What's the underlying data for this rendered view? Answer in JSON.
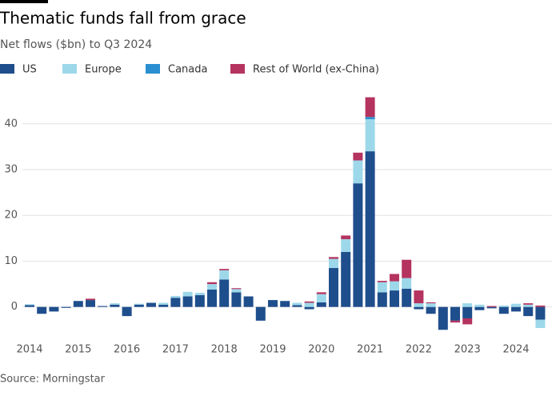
{
  "chart_data": {
    "type": "stacked-bar",
    "title": "Thematic funds fall from grace",
    "subtitle": "Net flows ($bn) to Q3 2024",
    "source": "Source: Morningstar",
    "categories": [
      "2014",
      null,
      null,
      null,
      "2015",
      null,
      null,
      null,
      "2016",
      null,
      null,
      null,
      "2017",
      null,
      null,
      null,
      "2018",
      null,
      null,
      null,
      "2019",
      null,
      null,
      null,
      "2020",
      null,
      null,
      null,
      "2021",
      null,
      null,
      null,
      "2022",
      null,
      null,
      null,
      "2023",
      null,
      null,
      null,
      "2024",
      null,
      null
    ],
    "series": [
      {
        "name": "US",
        "color": "#1f4e8c",
        "values": [
          0.4,
          -1.5,
          -1,
          -0.2,
          1.3,
          1.5,
          0.2,
          0.5,
          -2,
          0.5,
          0.9,
          0.5,
          2,
          2.3,
          2.6,
          3.8,
          6,
          3.2,
          2.3,
          -3,
          1.5,
          1.3,
          0.4,
          -0.5,
          1,
          8.5,
          12,
          27,
          34,
          3.2,
          3.6,
          4,
          -0.5,
          -1.5,
          -5,
          -3,
          -2.5,
          -0.7,
          -0.3,
          -1.5,
          -1,
          -2,
          -2.8
        ]
      },
      {
        "name": "Europe",
        "color": "#9dd8ea",
        "values": [
          0.2,
          0,
          0,
          0,
          0,
          0,
          0,
          0.3,
          0,
          0.2,
          0,
          0.4,
          0.4,
          1,
          0.5,
          1.2,
          2,
          0.7,
          0,
          0,
          0,
          0,
          0.5,
          0.9,
          1.8,
          2,
          2.8,
          5,
          7,
          2.2,
          2,
          2.3,
          0.8,
          0.8,
          0,
          0,
          0.8,
          0.5,
          0,
          0.3,
          0.7,
          0.5,
          -1.8
        ]
      },
      {
        "name": "Canada",
        "color": "#2a8fd0",
        "values": [
          0,
          0,
          0,
          0,
          0,
          0,
          0,
          0,
          0,
          0,
          0,
          0,
          0,
          0,
          0,
          0,
          0,
          0,
          0,
          0,
          0,
          0,
          0,
          0,
          0,
          0,
          0,
          0,
          0.5,
          0,
          0,
          0,
          0,
          0,
          0,
          0,
          0,
          0,
          0,
          0,
          0,
          0,
          0
        ]
      },
      {
        "name": "Rest of World (ex-China)",
        "color": "#b5335f",
        "values": [
          0,
          0,
          0,
          0,
          0,
          0.3,
          0,
          0,
          0,
          0,
          0,
          0,
          0,
          0,
          0,
          0.4,
          0.3,
          0.2,
          0,
          0,
          0,
          0,
          0,
          0.3,
          0.4,
          0.4,
          0.8,
          1.7,
          4.3,
          0.3,
          1.6,
          4,
          2.8,
          0.2,
          0,
          -0.4,
          -1.3,
          0,
          0.2,
          0,
          0,
          0.3,
          0.3
        ]
      }
    ],
    "ylim": [
      -6,
      48
    ],
    "yticks": [
      0,
      10,
      20,
      30,
      40
    ],
    "grid": true
  }
}
